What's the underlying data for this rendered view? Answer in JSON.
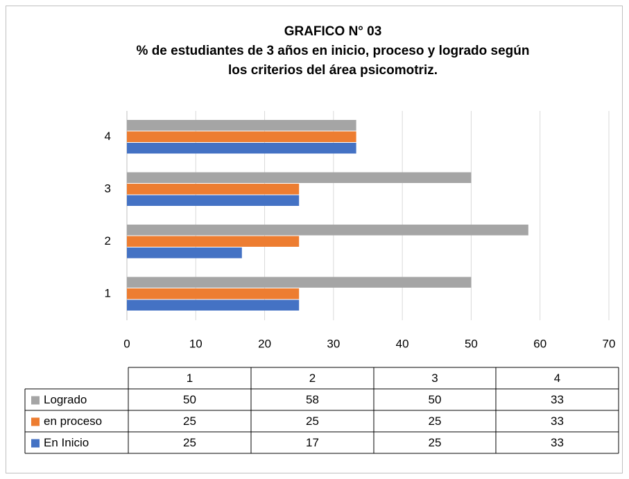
{
  "chart_data": {
    "type": "bar",
    "orientation": "horizontal",
    "title": [
      "GRAFICO N° 03",
      "% de estudiantes de 3 años en inicio, proceso y logrado según",
      "los criterios del área psicomotriz."
    ],
    "categories": [
      "1",
      "2",
      "3",
      "4"
    ],
    "series": [
      {
        "name": "Logrado",
        "color": "#a5a5a5",
        "values": [
          50,
          58.3,
          50,
          33.3
        ],
        "value_labels": [
          "50",
          "58",
          "50",
          "33"
        ]
      },
      {
        "name": "en proceso",
        "color": "#ed7d31",
        "values": [
          25,
          25,
          25,
          33.3
        ],
        "value_labels": [
          "25",
          "25",
          "25",
          "33"
        ]
      },
      {
        "name": "En Inicio",
        "color": "#4472c4",
        "values": [
          25,
          16.7,
          25,
          33.3
        ],
        "value_labels": [
          "25",
          "17",
          "25",
          "33"
        ]
      }
    ],
    "xlim": [
      0,
      70
    ],
    "xticks": [
      0,
      10,
      20,
      30,
      40,
      50,
      60,
      70
    ],
    "grid": true
  }
}
